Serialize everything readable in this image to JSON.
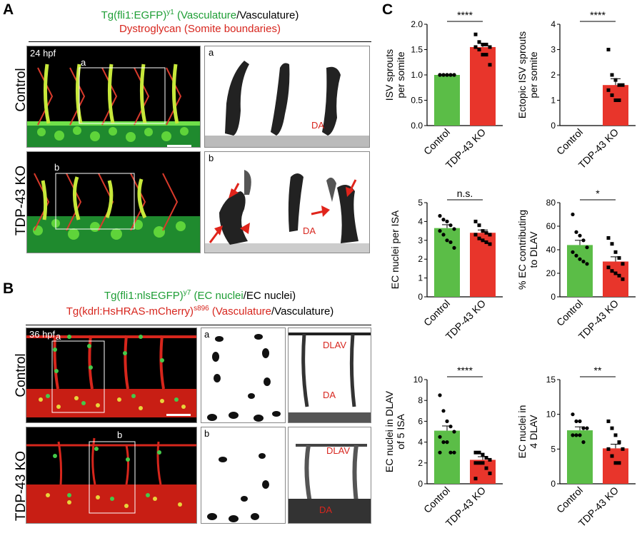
{
  "panels": {
    "A": {
      "letter": "A",
      "header": {
        "line1_green": "Tg(fli1:EGFP)",
        "line1_sup": "y1",
        "line1_green2": " (Vasculature",
        "line1_black": "/Vasculature)",
        "line2_red": "Dystroglycan (Somite boundaries)"
      },
      "time": "24 hpf",
      "rows": [
        "Control",
        "TDP-43 KO"
      ],
      "insets": [
        "a",
        "b"
      ],
      "da_label": "DA"
    },
    "B": {
      "letter": "B",
      "header": {
        "line1_green": "Tg(fli1:nlsEGFP)",
        "line1_sup": "y7",
        "line1_green2": " (EC nuclei",
        "line1_black": "/EC nuclei)",
        "line2_red": "Tg(kdrl:HsHRAS-mCherry)",
        "line2_sup": "s896",
        "line2_red2": " (Vasculature",
        "line2_black": "/Vasculature)"
      },
      "time": "36 hpf",
      "rows": [
        "Control",
        "TDP-43 KO"
      ],
      "insets": [
        "a",
        "b"
      ],
      "dlav_label": "DLAV",
      "da_label": "DA"
    },
    "C": {
      "letter": "C"
    }
  },
  "colors": {
    "control": "#5bbd47",
    "ko": "#e8352b",
    "green_text": "#1e9e35",
    "red_text": "#d7261e"
  },
  "chart_data": [
    {
      "type": "bar",
      "ylabel": "ISV sprouts per somite",
      "categories": [
        "Control",
        "TDP-43 KO"
      ],
      "values": [
        1.0,
        1.55
      ],
      "errors": [
        0,
        0.07
      ],
      "ylim": [
        0,
        2.0
      ],
      "yticks": [
        "0.0",
        "0.5",
        "1.0",
        "1.5",
        "2.0"
      ],
      "significance": "****",
      "points": [
        [
          1,
          1,
          1,
          1,
          1,
          1,
          1,
          1,
          1,
          1
        ],
        [
          1.8,
          1.65,
          1.6,
          1.6,
          1.55,
          1.55,
          1.5,
          1.4,
          1.4,
          1.2
        ]
      ]
    },
    {
      "type": "bar",
      "ylabel": "Ectopic ISV sprouts per somite",
      "categories": [
        "Control",
        "TDP-43 KO"
      ],
      "values": [
        0,
        1.6
      ],
      "errors": [
        0,
        0.25
      ],
      "ylim": [
        0,
        4
      ],
      "yticks": [
        "0",
        "1",
        "2",
        "3",
        "4"
      ],
      "significance": "****",
      "points": [
        [],
        [
          3.0,
          2.0,
          1.8,
          1.6,
          1.6,
          1.4,
          1.2,
          1.0,
          1.0
        ]
      ]
    },
    {
      "type": "bar",
      "ylabel": "EC nuclei per ISA",
      "categories": [
        "Control",
        "TDP-43 KO"
      ],
      "values": [
        3.65,
        3.4
      ],
      "errors": [
        0.18,
        0.15
      ],
      "ylim": [
        0,
        5
      ],
      "yticks": [
        "0",
        "1",
        "2",
        "3",
        "4",
        "5"
      ],
      "significance": "n.s.",
      "points": [
        [
          4.3,
          4.1,
          4.0,
          3.8,
          3.6,
          3.5,
          3.3,
          3.0,
          2.9,
          2.6
        ],
        [
          4.0,
          3.8,
          3.5,
          3.4,
          3.3,
          3.3,
          3.1,
          3.0,
          2.9,
          2.8
        ]
      ]
    },
    {
      "type": "bar",
      "ylabel": "% EC contributing to DLAV",
      "categories": [
        "Control",
        "TDP-43 KO"
      ],
      "values": [
        44,
        30
      ],
      "errors": [
        4,
        4
      ],
      "ylim": [
        0,
        80
      ],
      "yticks": [
        "0",
        "20",
        "40",
        "60",
        "80"
      ],
      "significance": "*",
      "points": [
        [
          70,
          55,
          52,
          48,
          42,
          38,
          35,
          32,
          30,
          28
        ],
        [
          50,
          45,
          38,
          33,
          28,
          25,
          22,
          20,
          18,
          15
        ]
      ]
    },
    {
      "type": "bar",
      "ylabel": "EC nuclei in DLAV of 5 ISA",
      "categories": [
        "Control",
        "TDP-43 KO"
      ],
      "values": [
        5.1,
        2.3
      ],
      "errors": [
        0.45,
        0.3
      ],
      "ylim": [
        0,
        10
      ],
      "yticks": [
        "0",
        "2",
        "4",
        "6",
        "8",
        "10"
      ],
      "significance": "****",
      "points": [
        [
          8.5,
          7.0,
          6.0,
          5.5,
          5.0,
          4.5,
          4.0,
          4.0,
          3.0,
          3.0,
          3.0
        ],
        [
          3.0,
          3.0,
          2.8,
          2.5,
          2.3,
          2.0,
          2.0,
          2.0,
          1.5,
          1.0,
          0.5
        ]
      ]
    },
    {
      "type": "bar",
      "ylabel": "EC nuclei in 4 DLAV",
      "categories": [
        "Control",
        "TDP-43 KO"
      ],
      "values": [
        7.7,
        5.1
      ],
      "errors": [
        0.5,
        0.6
      ],
      "ylim": [
        0,
        15
      ],
      "yticks": [
        "0",
        "5",
        "10",
        "15"
      ],
      "significance": "**",
      "points": [
        [
          10,
          9,
          9,
          8,
          8,
          7,
          7,
          7,
          6
        ],
        [
          9,
          8,
          7,
          6,
          5,
          5,
          4,
          3,
          3
        ]
      ]
    }
  ]
}
